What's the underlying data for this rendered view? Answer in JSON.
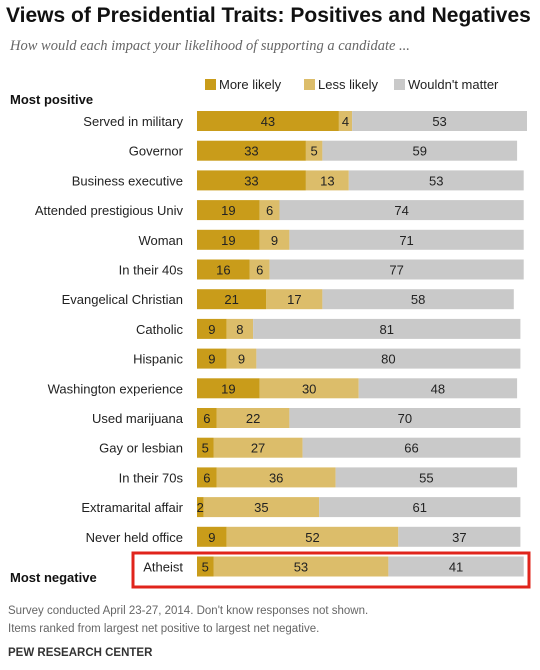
{
  "colors": {
    "more_likely": "#c99c1a",
    "less_likely": "#dcbd6a",
    "wouldnt_matter": "#c9c9c9",
    "highlight": "#e0241b"
  },
  "chart_data": {
    "type": "bar",
    "orientation": "horizontal",
    "stacked": true,
    "title": "Views of Presidential Traits: Positives and Negatives",
    "subtitle": "How would each impact your likelihood of supporting a candidate ...",
    "legend": {
      "placement": "top",
      "entries": [
        "More likely",
        "Less likely",
        "Wouldn't matter"
      ]
    },
    "top_label": "Most positive",
    "bottom_label": "Most negative",
    "categories": [
      "Served in military",
      "Governor",
      "Business executive",
      "Attended prestigious Univ",
      "Woman",
      "In their 40s",
      "Evangelical Christian",
      "Catholic",
      "Hispanic",
      "Washington experience",
      "Used marijuana",
      "Gay or lesbian",
      "In their 70s",
      "Extramarital affair",
      "Never held office",
      "Atheist"
    ],
    "series": [
      {
        "name": "More likely",
        "values": [
          43,
          33,
          33,
          19,
          19,
          16,
          21,
          9,
          9,
          19,
          6,
          5,
          6,
          2,
          9,
          5
        ]
      },
      {
        "name": "Less likely",
        "values": [
          4,
          5,
          13,
          6,
          9,
          6,
          17,
          8,
          9,
          30,
          22,
          27,
          36,
          35,
          52,
          53
        ]
      },
      {
        "name": "Wouldn't matter",
        "values": [
          53,
          59,
          53,
          74,
          71,
          77,
          58,
          81,
          80,
          48,
          70,
          66,
          55,
          61,
          37,
          41
        ]
      }
    ],
    "highlighted_category": "Atheist",
    "xlim": [
      0,
      100
    ],
    "grid": false
  },
  "notes": [
    "Survey conducted April 23-27, 2014.  Don't know responses not shown.",
    "Items ranked from largest net positive to largest net negative."
  ],
  "source": "PEW RESEARCH CENTER"
}
